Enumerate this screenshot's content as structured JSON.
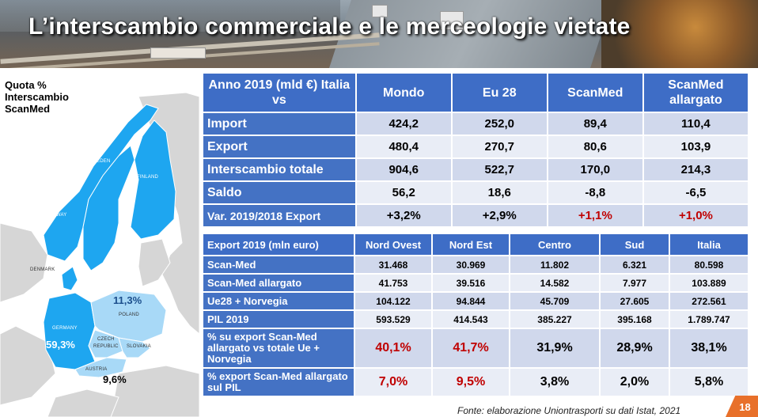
{
  "title": "L’interscambio commerciale e le merceologie vietate",
  "map": {
    "caption": "Quota % Interscambio ScanMed",
    "countries": [
      "SWEDEN",
      "FINLAND",
      "NORWAY",
      "DENMARK",
      "POLAND",
      "GERMANY",
      "CZECH",
      "REPUBLIC",
      "SLOVAKIA",
      "AUSTRIA"
    ],
    "values": {
      "poland": "11,3%",
      "germany": "59,3%",
      "austria": "9,6%"
    },
    "colors": {
      "scanmed": "#1ea6f0",
      "light": "#a8d9f7",
      "other": "#d6d6d6"
    }
  },
  "table1": {
    "header": [
      "Anno 2019 (mld €) Italia vs",
      "Mondo",
      "Eu 28",
      "ScanMed",
      "ScanMed allargato"
    ],
    "rows": [
      {
        "label": "Import",
        "values": [
          "424,2",
          "252,0",
          "89,4",
          "110,4"
        ]
      },
      {
        "label": "Export",
        "values": [
          "480,4",
          "270,7",
          "80,6",
          "103,9"
        ]
      },
      {
        "label": "Interscambio totale",
        "values": [
          "904,6",
          "522,7",
          "170,0",
          "214,3"
        ]
      },
      {
        "label": "Saldo",
        "values": [
          "56,2",
          "18,6",
          "-8,8",
          "-6,5"
        ]
      },
      {
        "label": "Var. 2019/2018 Export",
        "values": [
          "+3,2%",
          "+2,9%",
          "+1,1%",
          "+1,0%"
        ]
      }
    ]
  },
  "table2": {
    "header": [
      "Export 2019 (mln euro)",
      "Nord Ovest",
      "Nord Est",
      "Centro",
      "Sud",
      "Italia"
    ],
    "rows": [
      {
        "label": "Scan-Med",
        "values": [
          "31.468",
          "30.969",
          "11.802",
          "6.321",
          "80.598"
        ]
      },
      {
        "label": "Scan-Med allargato",
        "values": [
          "41.753",
          "39.516",
          "14.582",
          "7.977",
          "103.889"
        ]
      },
      {
        "label": "Ue28 + Norvegia",
        "values": [
          "104.122",
          "94.844",
          "45.709",
          "27.605",
          "272.561"
        ]
      },
      {
        "label": "PIL 2019",
        "values": [
          "593.529",
          "414.543",
          "385.227",
          "395.168",
          "1.789.747"
        ]
      },
      {
        "label": "% su export Scan-Med allargato vs totale Ue + Norvegia",
        "values": [
          "40,1%",
          "41,7%",
          "31,9%",
          "28,9%",
          "38,1%"
        ]
      },
      {
        "label": "% export Scan-Med allargato sul PIL",
        "values": [
          "7,0%",
          "9,5%",
          "3,8%",
          "2,0%",
          "5,8%"
        ]
      }
    ]
  },
  "source": "Fonte: elaborazione Uniontrasporti su dati Istat, 2021",
  "page_number": "18",
  "colors": {
    "header_blue": "#3e6dc6",
    "row_blue": "#4472c4",
    "cell_dark": "#d0d8ec",
    "cell_light": "#e9edf6",
    "highlight_red": "#c00000",
    "badge_orange": "#e8702a"
  }
}
